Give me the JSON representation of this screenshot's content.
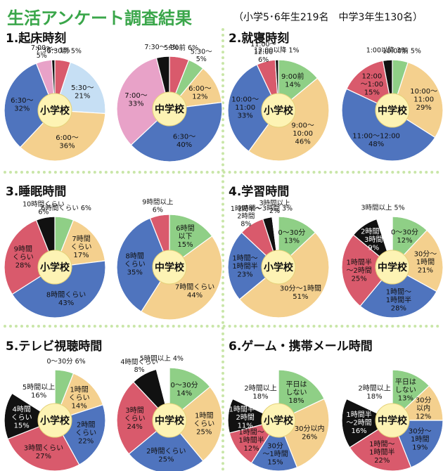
{
  "page": {
    "title": "生活アンケート調査結果",
    "subtitle": "（小学5･6年生219名　中学3年生130名）"
  },
  "colors": {
    "green": "#8fcf86",
    "tan": "#f4d08e",
    "blue": "#4f74be",
    "red": "#d95a6c",
    "black": "#111111",
    "pink": "#e8a2c8",
    "lightblue": "#c6dff4",
    "white": "#ffffff",
    "center": "#fdf3b4",
    "divider": "#c9e6a8"
  },
  "sections": [
    {
      "title": "1.起床時刻"
    },
    {
      "title": "2.就寝時刻"
    },
    {
      "title": "3.睡眠時間"
    },
    {
      "title": "4.学習時間"
    },
    {
      "title": "5.テレビ視聴時間"
    },
    {
      "title": "6.ゲーム・携帯メール時間"
    }
  ],
  "chart_data": [
    {
      "type": "pie",
      "section": "1.起床時刻",
      "center_label": "小学校",
      "slices": [
        {
          "label": "5:30前 5%",
          "value": 5,
          "color": "red"
        },
        {
          "label": "5:30〜\n21%",
          "value": 21,
          "color": "lightblue"
        },
        {
          "label": "6:00〜\n36%",
          "value": 36,
          "color": "tan"
        },
        {
          "label": "6:30〜\n32%",
          "value": 32,
          "color": "blue"
        },
        {
          "label": "7:00〜\n5%",
          "value": 5,
          "color": "pink"
        },
        {
          "label": "7:30〜 1%",
          "value": 1,
          "color": "black"
        }
      ]
    },
    {
      "type": "pie",
      "section": "1.起床時刻",
      "center_label": "中学校",
      "slices": [
        {
          "label": "5:30前 6%",
          "value": 6,
          "color": "red"
        },
        {
          "label": "5:30〜\n5%",
          "value": 5,
          "color": "green"
        },
        {
          "label": "6:00〜\n12%",
          "value": 12,
          "color": "tan"
        },
        {
          "label": "6:30〜\n40%",
          "value": 40,
          "color": "blue"
        },
        {
          "label": "7:00〜\n33%",
          "value": 33,
          "color": "pink"
        },
        {
          "label": "7:30〜 4%",
          "value": 4,
          "color": "black"
        }
      ]
    },
    {
      "type": "pie",
      "section": "2.就寝時刻",
      "center_label": "小学校",
      "slices": [
        {
          "label": "9:00前\n14%",
          "value": 14,
          "color": "green"
        },
        {
          "label": "9:00〜\n10:00\n46%",
          "value": 46,
          "color": "tan"
        },
        {
          "label": "10:00〜\n11:00\n33%",
          "value": 33,
          "color": "blue"
        },
        {
          "label": "11:00〜\n12:00\n6%",
          "value": 6,
          "color": "red"
        },
        {
          "label": "12:00以降 1%",
          "value": 1,
          "color": "black"
        }
      ]
    },
    {
      "type": "pie",
      "section": "2.就寝時刻",
      "center_label": "中学校",
      "slices": [
        {
          "label": "10:00前 5%",
          "value": 5,
          "color": "green"
        },
        {
          "label": "10:00〜\n11:00\n29%",
          "value": 29,
          "color": "tan"
        },
        {
          "label": "11:00〜12:00\n48%",
          "value": 48,
          "color": "blue"
        },
        {
          "label": "12:00\n〜1:00\n15%",
          "value": 15,
          "color": "red"
        },
        {
          "label": "1:00以降 3%",
          "value": 3,
          "color": "black"
        }
      ]
    },
    {
      "type": "pie",
      "section": "3.睡眠時間",
      "center_label": "小学校",
      "slices": [
        {
          "label": "6時間くらい 6%",
          "value": 6,
          "color": "green"
        },
        {
          "label": "7時間\nくらい\n17%",
          "value": 17,
          "color": "tan"
        },
        {
          "label": "8時間くらい\n43%",
          "value": 43,
          "color": "blue"
        },
        {
          "label": "9時間\nくらい\n28%",
          "value": 28,
          "color": "red"
        },
        {
          "label": "10時間くらい\n6%",
          "value": 6,
          "color": "black"
        }
      ]
    },
    {
      "type": "pie",
      "section": "3.睡眠時間",
      "center_label": "中学校",
      "slices": [
        {
          "label": "6時間\n以下\n15%",
          "value": 15,
          "color": "green"
        },
        {
          "label": "7時間くらい\n44%",
          "value": 44,
          "color": "tan"
        },
        {
          "label": "8時間\nくらい\n35%",
          "value": 35,
          "color": "blue"
        },
        {
          "label": "9時間以上\n6%",
          "value": 6,
          "color": "red"
        }
      ]
    },
    {
      "type": "pie",
      "section": "4.学習時間",
      "center_label": "小学校",
      "slices": [
        {
          "label": "0〜30分\n13%",
          "value": 13,
          "color": "green"
        },
        {
          "label": "30分〜1時間\n51%",
          "value": 51,
          "color": "tan"
        },
        {
          "label": "1時間〜\n1時間半\n23%",
          "value": 23,
          "color": "blue"
        },
        {
          "label": "1時間半〜\n2時間\n8%",
          "value": 8,
          "color": "red"
        },
        {
          "label": "2時間〜3時間 3%",
          "value": 3,
          "color": "black"
        },
        {
          "label": "3時間以上\n2%",
          "value": 2,
          "color": "white"
        }
      ]
    },
    {
      "type": "pie",
      "section": "4.学習時間",
      "center_label": "中学校",
      "slices": [
        {
          "label": "0〜30分\n12%",
          "value": 12,
          "color": "green"
        },
        {
          "label": "30分〜\n1時間\n21%",
          "value": 21,
          "color": "tan"
        },
        {
          "label": "1時間〜\n1時間半\n28%",
          "value": 28,
          "color": "blue"
        },
        {
          "label": "1時間半\n〜2時間\n25%",
          "value": 25,
          "color": "red"
        },
        {
          "label": "2時間〜\n3時間\n9%",
          "value": 9,
          "color": "black"
        },
        {
          "label": "3時間以上 5%",
          "value": 5,
          "color": "white"
        }
      ]
    },
    {
      "type": "pie",
      "section": "5.テレビ視聴時間",
      "center_label": "小学校",
      "slices": [
        {
          "label": "0〜30分 6%",
          "value": 6,
          "color": "green"
        },
        {
          "label": "1時間\nくらい\n14%",
          "value": 14,
          "color": "tan"
        },
        {
          "label": "2時間\nくらい\n22%",
          "value": 22,
          "color": "blue"
        },
        {
          "label": "3時間くらい\n27%",
          "value": 27,
          "color": "red"
        },
        {
          "label": "4時間\nくらい\n15%",
          "value": 15,
          "color": "black"
        },
        {
          "label": "5時間以上\n16%",
          "value": 16,
          "color": "white"
        }
      ]
    },
    {
      "type": "pie",
      "section": "5.テレビ視聴時間",
      "center_label": "中学校",
      "slices": [
        {
          "label": "0〜30分\n14%",
          "value": 14,
          "color": "green"
        },
        {
          "label": "1時間\nくらい\n25%",
          "value": 25,
          "color": "tan"
        },
        {
          "label": "2時間くらい\n25%",
          "value": 25,
          "color": "blue"
        },
        {
          "label": "3時間\nくらい\n24%",
          "value": 24,
          "color": "red"
        },
        {
          "label": "4時間くらい\n8%",
          "value": 8,
          "color": "black"
        },
        {
          "label": "5時間以上 4%",
          "value": 4,
          "color": "white"
        }
      ]
    },
    {
      "type": "pie",
      "section": "6.ゲーム・携帯メール時間",
      "center_label": "小学校",
      "slices": [
        {
          "label": "平日は\nしない\n18%",
          "value": 18,
          "color": "green"
        },
        {
          "label": "30分以内\n26%",
          "value": 26,
          "color": "tan"
        },
        {
          "label": "30分\n〜1時間\n15%",
          "value": 15,
          "color": "blue"
        },
        {
          "label": "1時間〜\n1時間半\n12%",
          "value": 12,
          "color": "red"
        },
        {
          "label": "1時間半〜\n2時間\n11%",
          "value": 11,
          "color": "black"
        },
        {
          "label": "2時間以上\n18%",
          "value": 18,
          "color": "white"
        }
      ]
    },
    {
      "type": "pie",
      "section": "6.ゲーム・携帯メール時間",
      "center_label": "中学校",
      "slices": [
        {
          "label": "平日は\nしない\n13%",
          "value": 13,
          "color": "green"
        },
        {
          "label": "30分\n以内\n12%",
          "value": 12,
          "color": "tan"
        },
        {
          "label": "30分〜\n1時間\n19%",
          "value": 19,
          "color": "blue"
        },
        {
          "label": "1時間〜\n1時間半\n22%",
          "value": 22,
          "color": "red"
        },
        {
          "label": "1時間半\n〜2時間\n16%",
          "value": 16,
          "color": "black"
        },
        {
          "label": "2時間以上\n18%",
          "value": 18,
          "color": "white"
        }
      ]
    }
  ]
}
